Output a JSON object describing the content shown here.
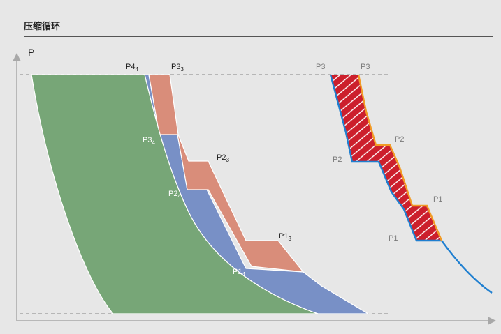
{
  "title": "压缩循环",
  "y_axis_label": "P",
  "left_diagram": {
    "labels": {
      "p4": {
        "base": "P4",
        "sub": "4"
      },
      "p3_top": {
        "base": "P3",
        "sub": "3"
      },
      "p3_mid": {
        "base": "P3",
        "sub": "4"
      },
      "p2_upper": {
        "base": "P2",
        "sub": "3"
      },
      "p2_mid": {
        "base": "P2",
        "sub": "4"
      },
      "p1_upper": {
        "base": "P1",
        "sub": "3"
      },
      "p1_mid": {
        "base": "P1",
        "sub": "4"
      }
    },
    "colors": {
      "green": "#77a677",
      "blue": "#7890c6",
      "salmon": "#d98d7a"
    }
  },
  "right_diagram": {
    "labels": {
      "p3_left": "P3",
      "p3_right": "P3",
      "p2_left": "P2",
      "p2_right": "P2",
      "p1_left": "P1",
      "p1_right": "P1"
    },
    "colors": {
      "fill": "#cc1f2c",
      "blue_line": "#1f7fd0",
      "orange_line": "#f29b25"
    }
  }
}
